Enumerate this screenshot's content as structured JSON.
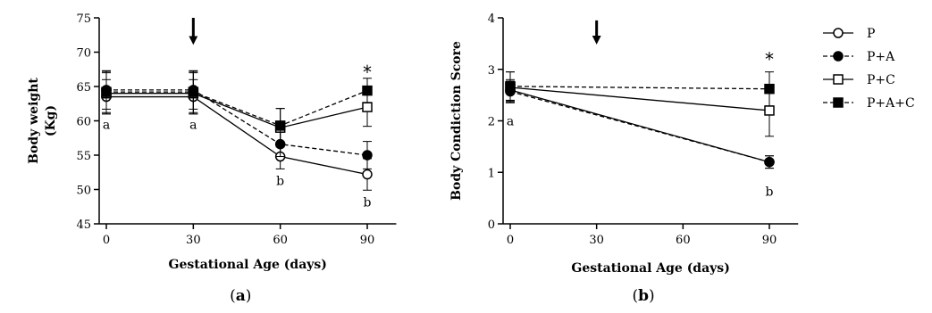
{
  "legend": [
    {
      "series": "P",
      "marker": "open-circle",
      "line": "solid"
    },
    {
      "series": "P+A",
      "marker": "filled-circle",
      "line": "dashed"
    },
    {
      "series": "P+C",
      "marker": "open-square",
      "line": "solid"
    },
    {
      "series": "P+A+C",
      "marker": "filled-square",
      "line": "dashed"
    }
  ],
  "chart_data": [
    {
      "type": "line",
      "panel_label": "(a)",
      "xlabel": "Gestational Age (days)",
      "ylabel": [
        "Body weight",
        "(Kg)"
      ],
      "xlim": [
        -5,
        100
      ],
      "ylim": [
        45,
        75
      ],
      "xticks": [
        0,
        30,
        60,
        90
      ],
      "yticks": [
        45,
        50,
        55,
        60,
        65,
        70,
        75
      ],
      "x": [
        0,
        30,
        60,
        90
      ],
      "series": [
        {
          "name": "P",
          "values": [
            63.5,
            63.5,
            54.8,
            52.2
          ],
          "errors": [
            2.5,
            2.5,
            1.8,
            2.3
          ]
        },
        {
          "name": "P+A",
          "values": [
            64.5,
            64.5,
            56.6,
            55.0
          ],
          "errors": [
            2.8,
            2.8,
            1.8,
            2.0
          ]
        },
        {
          "name": "P+C",
          "values": [
            64.0,
            64.0,
            59.0,
            62.0
          ],
          "errors": [
            3.0,
            3.0,
            2.8,
            2.8
          ]
        },
        {
          "name": "P+A+C",
          "values": [
            64.2,
            64.2,
            59.3,
            64.4
          ],
          "errors": [
            3.0,
            3.0,
            2.5,
            1.8
          ]
        }
      ],
      "annotations": [
        {
          "x": 0,
          "y": 59.5,
          "text": "a"
        },
        {
          "x": 30,
          "y": 59.5,
          "text": "a"
        },
        {
          "x": 60,
          "y": 51.3,
          "text": "b"
        },
        {
          "x": 90,
          "y": 48.2,
          "text": "b"
        },
        {
          "x": 90,
          "y": 67.5,
          "text": "*",
          "kind": "star"
        }
      ],
      "arrow": {
        "x": 30,
        "y_from": 75,
        "y_to": 71.2
      }
    },
    {
      "type": "line",
      "panel_label": "(b)",
      "xlabel": "Gestational Age (days)",
      "ylabel": [
        "Body Condiction Score"
      ],
      "xlim": [
        -5,
        100
      ],
      "ylim": [
        0,
        4
      ],
      "xticks": [
        0,
        30,
        60,
        90
      ],
      "yticks": [
        0,
        1,
        2,
        3,
        4
      ],
      "x": [
        0,
        90
      ],
      "series": [
        {
          "name": "P",
          "values": [
            2.6,
            1.2
          ],
          "errors": [
            0.2,
            0.12
          ]
        },
        {
          "name": "P+A",
          "values": [
            2.57,
            1.2
          ],
          "errors": [
            0.2,
            0.12
          ]
        },
        {
          "name": "P+C",
          "values": [
            2.65,
            2.2
          ],
          "errors": [
            0.3,
            0.5
          ]
        },
        {
          "name": "P+A+C",
          "values": [
            2.67,
            2.62
          ],
          "errors": [
            0.28,
            0.33
          ]
        }
      ],
      "annotations": [
        {
          "x": 0,
          "y": 2.0,
          "text": "a"
        },
        {
          "x": 90,
          "y": 0.63,
          "text": "b"
        },
        {
          "x": 90,
          "y": 3.25,
          "text": "*",
          "kind": "star"
        }
      ],
      "arrow": {
        "x": 30,
        "y_from": 3.95,
        "y_to": 3.5
      }
    }
  ]
}
